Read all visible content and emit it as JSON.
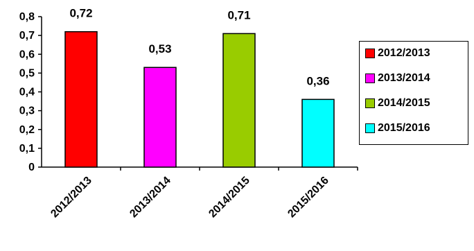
{
  "chart_data": {
    "type": "bar",
    "categories": [
      "2012/2013",
      "2013/2014",
      "2014/2015",
      "2015/2016"
    ],
    "values": [
      0.72,
      0.53,
      0.71,
      0.36
    ],
    "value_labels": [
      "0,72",
      "0,53",
      "0,71",
      "0,36"
    ],
    "ylim": [
      0,
      0.8
    ],
    "yticks": [
      0,
      0.1,
      0.2,
      0.3,
      0.4,
      0.5,
      0.6,
      0.7,
      0.8
    ],
    "ytick_labels": [
      "0",
      "0,1",
      "0,2",
      "0,3",
      "0,4",
      "0,5",
      "0,6",
      "0,7",
      "0,8"
    ],
    "colors": [
      "#ff0000",
      "#ff00ff",
      "#99cc00",
      "#00ffff"
    ],
    "grid": false,
    "legend_position": "right",
    "legend": [
      {
        "label": "2012/2013",
        "color": "#ff0000"
      },
      {
        "label": "2013/2014",
        "color": "#ff00ff"
      },
      {
        "label": "2014/2015",
        "color": "#99cc00"
      },
      {
        "label": "2015/2016",
        "color": "#00ffff"
      }
    ]
  }
}
